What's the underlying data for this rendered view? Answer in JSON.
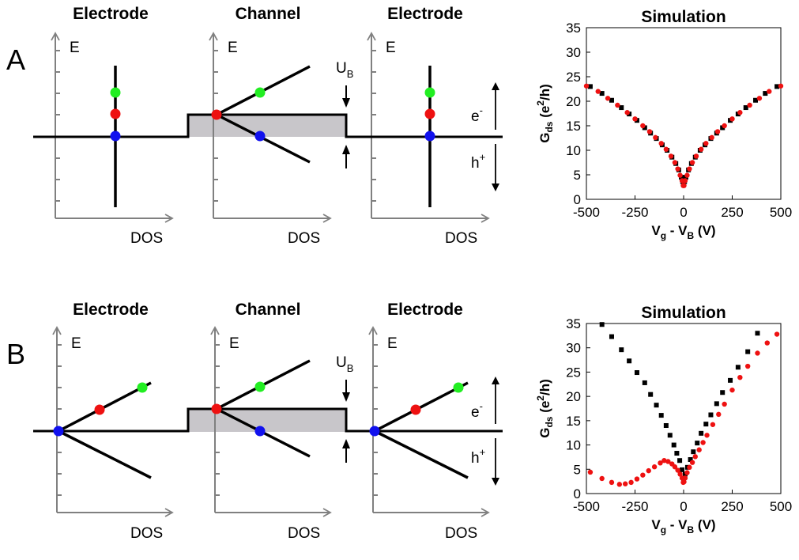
{
  "panel_a": {
    "letter": "A",
    "titles": {
      "left": "Electrode",
      "center": "Channel",
      "right": "Electrode"
    },
    "axis_e": "E",
    "axis_dos": "DOS",
    "barrier": "U",
    "barrier_sub": "B",
    "electron": "e",
    "electron_sup": "-",
    "hole": "h",
    "hole_sup": "+"
  },
  "panel_b": {
    "letter": "B",
    "titles": {
      "left": "Electrode",
      "center": "Channel",
      "right": "Electrode"
    },
    "axis_e": "E",
    "axis_dos": "DOS",
    "barrier": "U",
    "barrier_sub": "B",
    "electron": "e",
    "electron_sup": "-",
    "hole": "h",
    "hole_sup": "+"
  },
  "colors": {
    "green": "#22ee22",
    "red": "#ee1111",
    "blue": "#1111ee",
    "gray": "#c8c6ca",
    "axis": "#808080"
  },
  "chart_data": [
    {
      "type": "scatter",
      "title": "Simulation",
      "ylabel": {
        "main": "G",
        "sub": "ds",
        "paren_open": "(e",
        "sup": "2",
        "paren_close": "/h)"
      },
      "xlabel": {
        "v": "V",
        "g": "g",
        "minus": " - V",
        "b": "B",
        "unit": " (V)"
      },
      "xlim": [
        -500,
        500
      ],
      "ylim": [
        0,
        35
      ],
      "xticks": [
        "-500",
        "-250",
        "0",
        "250",
        "500"
      ],
      "yticks": [
        "0",
        "5",
        "10",
        "15",
        "20",
        "25",
        "30",
        "35"
      ],
      "series": [
        {
          "marker": "square",
          "color": "#000000",
          "x": [
            -480,
            -420,
            -370,
            -320,
            -280,
            -240,
            -200,
            -170,
            -140,
            -110,
            -85,
            -60,
            -40,
            -25,
            -12,
            -5,
            0,
            5,
            12,
            25,
            40,
            60,
            85,
            110,
            140,
            170,
            200,
            240,
            280,
            320,
            370,
            420,
            480
          ],
          "y": [
            23.0,
            21.6,
            20.2,
            18.7,
            17.4,
            16.1,
            14.6,
            13.5,
            12.4,
            11.1,
            10.0,
            8.6,
            7.3,
            6.0,
            4.5,
            3.6,
            2.9,
            3.6,
            4.5,
            6.0,
            7.3,
            8.6,
            10.0,
            11.1,
            12.4,
            13.5,
            14.6,
            16.1,
            17.4,
            18.7,
            20.2,
            21.6,
            23.0
          ]
        },
        {
          "marker": "circle",
          "color": "#ee1111",
          "x": [
            -500,
            -440,
            -390,
            -340,
            -290,
            -250,
            -210,
            -175,
            -145,
            -115,
            -90,
            -65,
            -45,
            -30,
            -18,
            -8,
            -2,
            2,
            8,
            18,
            30,
            45,
            65,
            90,
            115,
            145,
            175,
            210,
            250,
            290,
            340,
            390,
            440,
            500
          ],
          "y": [
            23.1,
            22.0,
            20.6,
            19.2,
            17.7,
            16.4,
            15.0,
            13.8,
            12.6,
            11.4,
            10.2,
            8.8,
            7.5,
            6.2,
            4.9,
            3.8,
            2.8,
            2.8,
            3.8,
            4.9,
            6.2,
            7.5,
            8.8,
            10.2,
            11.4,
            12.6,
            13.8,
            15.0,
            16.4,
            17.7,
            19.2,
            20.6,
            22.0,
            23.1
          ]
        }
      ]
    },
    {
      "type": "scatter",
      "title": "Simulation",
      "ylabel": {
        "main": "G",
        "sub": "ds",
        "paren_open": "(e",
        "sup": "2",
        "paren_close": "/h)"
      },
      "xlabel": {
        "v": "V",
        "g": "g",
        "minus": " - V",
        "b": "B",
        "unit": " (V)"
      },
      "xlim": [
        -500,
        500
      ],
      "ylim": [
        0,
        35
      ],
      "xticks": [
        "-500",
        "-250",
        "0",
        "250",
        "500"
      ],
      "yticks": [
        "0",
        "5",
        "10",
        "15",
        "20",
        "25",
        "30",
        "35"
      ],
      "series": [
        {
          "marker": "square",
          "color": "#000000",
          "x": [
            -420,
            -370,
            -320,
            -280,
            -240,
            -200,
            -170,
            -140,
            -115,
            -90,
            -70,
            -50,
            -35,
            -20,
            -8,
            0,
            8,
            20,
            35,
            50,
            70,
            90,
            115,
            140,
            170,
            200,
            240,
            280,
            330,
            380
          ],
          "y": [
            34.8,
            32.3,
            29.6,
            27.3,
            24.9,
            22.8,
            20.4,
            18.2,
            16.1,
            14.0,
            12.0,
            10.0,
            8.3,
            6.8,
            4.9,
            2.8,
            4.0,
            5.4,
            7.0,
            8.6,
            10.4,
            12.4,
            14.3,
            16.2,
            18.5,
            20.8,
            23.3,
            26.0,
            29.2,
            33.0
          ]
        },
        {
          "marker": "circle",
          "color": "#ee1111",
          "x": [
            -480,
            -420,
            -370,
            -330,
            -300,
            -270,
            -240,
            -210,
            -180,
            -150,
            -120,
            -100,
            -80,
            -60,
            -45,
            -30,
            -18,
            -8,
            -2,
            2,
            8,
            18,
            30,
            45,
            60,
            80,
            100,
            120,
            150,
            180,
            210,
            250,
            290,
            330,
            380,
            430,
            480
          ],
          "y": [
            4.4,
            3.1,
            2.3,
            1.9,
            2.0,
            2.3,
            3.0,
            3.8,
            4.7,
            5.5,
            6.3,
            6.8,
            6.6,
            6.1,
            5.5,
            4.8,
            4.0,
            3.2,
            2.3,
            2.4,
            3.2,
            4.3,
            5.4,
            6.4,
            7.6,
            9.0,
            10.5,
            12.0,
            14.2,
            16.3,
            18.4,
            21.3,
            23.9,
            26.2,
            28.9,
            31.0,
            32.8
          ]
        }
      ]
    }
  ]
}
